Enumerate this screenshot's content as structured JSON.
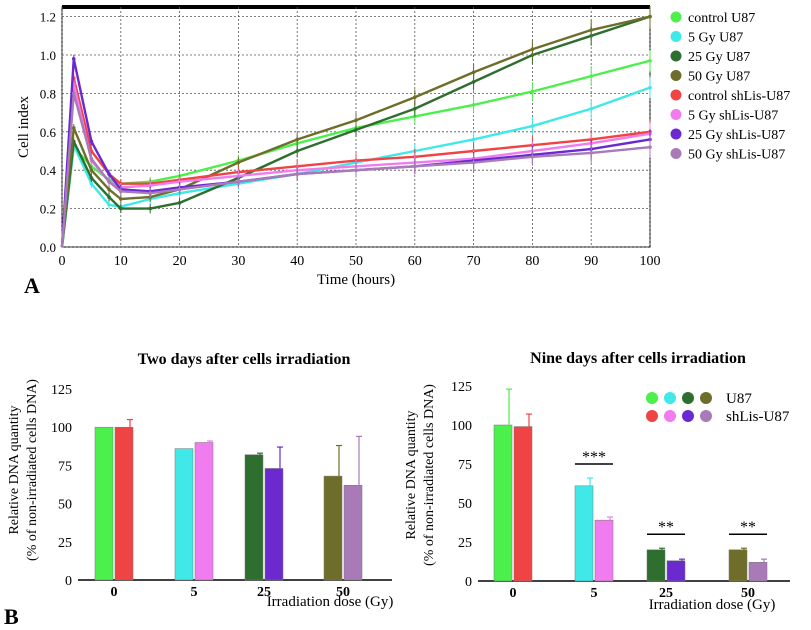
{
  "panel_labels": {
    "a": "A",
    "b": "B"
  },
  "colors": {
    "control_u87": "#4cf04c",
    "5gy_u87": "#40e8e8",
    "25gy_u87": "#2e6e2e",
    "50gy_u87": "#6e6e2a",
    "control_sh": "#f04444",
    "5gy_sh": "#f07cf0",
    "25gy_sh": "#6a2ad0",
    "50gy_sh": "#a87ab8"
  },
  "chart_data": [
    {
      "type": "line",
      "id": "growth",
      "xlabel": "Time (hours)",
      "ylabel": "Cell index",
      "xlim": [
        0,
        100
      ],
      "ylim": [
        0.0,
        1.25
      ],
      "xticks": [
        "0",
        "10",
        "20",
        "30",
        "40",
        "50",
        "60",
        "70",
        "80",
        "90",
        "100"
      ],
      "yticks": [
        "0.0",
        "0.2",
        "0.4",
        "0.6",
        "0.8",
        "1.0",
        "1.2"
      ],
      "grid": true,
      "legend_position": "right",
      "series": [
        {
          "name": "control U87",
          "color": "#4cf04c",
          "x": [
            0,
            2,
            5,
            8,
            10,
            15,
            20,
            30,
            40,
            50,
            60,
            70,
            80,
            90,
            100
          ],
          "y": [
            0.0,
            0.52,
            0.42,
            0.35,
            0.33,
            0.34,
            0.37,
            0.45,
            0.54,
            0.62,
            0.68,
            0.74,
            0.81,
            0.89,
            0.97
          ]
        },
        {
          "name": "5 Gy U87",
          "color": "#40e8e8",
          "x": [
            0,
            2,
            5,
            8,
            10,
            15,
            20,
            30,
            40,
            50,
            60,
            70,
            80,
            90,
            100
          ],
          "y": [
            0.0,
            0.53,
            0.33,
            0.22,
            0.21,
            0.25,
            0.28,
            0.33,
            0.38,
            0.44,
            0.5,
            0.56,
            0.63,
            0.72,
            0.83
          ]
        },
        {
          "name": "25 Gy U87",
          "color": "#2e6e2e",
          "x": [
            0,
            2,
            5,
            8,
            10,
            15,
            20,
            30,
            40,
            50,
            60,
            70,
            80,
            90,
            100
          ],
          "y": [
            0.0,
            0.55,
            0.36,
            0.26,
            0.2,
            0.2,
            0.23,
            0.36,
            0.5,
            0.61,
            0.72,
            0.86,
            1.0,
            1.1,
            1.2
          ]
        },
        {
          "name": "50 Gy U87",
          "color": "#6e6e2a",
          "x": [
            0,
            2,
            5,
            8,
            10,
            15,
            20,
            30,
            40,
            50,
            60,
            70,
            80,
            90,
            100
          ],
          "y": [
            0.0,
            0.62,
            0.4,
            0.3,
            0.25,
            0.26,
            0.3,
            0.44,
            0.56,
            0.66,
            0.78,
            0.91,
            1.03,
            1.13,
            1.2
          ]
        },
        {
          "name": "control shLis-U87",
          "color": "#f04444",
          "x": [
            0,
            2,
            5,
            8,
            10,
            15,
            20,
            30,
            40,
            50,
            60,
            70,
            80,
            90,
            100
          ],
          "y": [
            0.0,
            0.88,
            0.5,
            0.38,
            0.33,
            0.33,
            0.35,
            0.39,
            0.42,
            0.45,
            0.47,
            0.5,
            0.53,
            0.56,
            0.6
          ]
        },
        {
          "name": "5 Gy shLis-U87",
          "color": "#f07cf0",
          "x": [
            0,
            2,
            5,
            8,
            10,
            15,
            20,
            30,
            40,
            50,
            60,
            70,
            80,
            90,
            100
          ],
          "y": [
            0.0,
            0.85,
            0.45,
            0.34,
            0.31,
            0.32,
            0.34,
            0.37,
            0.4,
            0.42,
            0.44,
            0.46,
            0.5,
            0.54,
            0.59
          ]
        },
        {
          "name": "25 Gy shLis-U87",
          "color": "#6a2ad0",
          "x": [
            0,
            2,
            5,
            8,
            10,
            15,
            20,
            30,
            40,
            50,
            60,
            70,
            80,
            90,
            100
          ],
          "y": [
            0.0,
            0.98,
            0.55,
            0.38,
            0.3,
            0.29,
            0.31,
            0.34,
            0.38,
            0.4,
            0.42,
            0.45,
            0.48,
            0.51,
            0.56
          ]
        },
        {
          "name": "50 Gy shLis-U87",
          "color": "#a87ab8",
          "x": [
            0,
            2,
            5,
            8,
            10,
            15,
            20,
            30,
            40,
            50,
            60,
            70,
            80,
            90,
            100
          ],
          "y": [
            0.0,
            0.8,
            0.46,
            0.34,
            0.29,
            0.28,
            0.3,
            0.34,
            0.38,
            0.4,
            0.42,
            0.44,
            0.47,
            0.49,
            0.52
          ]
        }
      ]
    },
    {
      "type": "bar",
      "id": "day2",
      "title": "Two days after cells irradiation",
      "xlabel": "Irradiation dose (Gy)",
      "ylabel": "Relative DNA quantity",
      "ylabel2": "(% of non-irradiated cells DNA)",
      "ylim": [
        0,
        125
      ],
      "yticks": [
        "0",
        "25",
        "50",
        "75",
        "100",
        "125"
      ],
      "categories": [
        "0",
        "5",
        "25",
        "50"
      ],
      "series": [
        {
          "name": "U87",
          "colors": [
            "#4cf04c",
            "#40e8e8",
            "#2e6e2e",
            "#6e6e2a"
          ],
          "values": [
            100,
            86,
            82,
            68
          ],
          "errors": [
            0,
            0,
            1,
            20
          ]
        },
        {
          "name": "shLis-U87",
          "colors": [
            "#f04444",
            "#f07cf0",
            "#6a2ad0",
            "#a87ab8"
          ],
          "values": [
            100,
            90,
            73,
            62
          ],
          "errors": [
            5,
            1,
            14,
            32
          ]
        }
      ]
    },
    {
      "type": "bar",
      "id": "day9",
      "title": "Nine days after cells irradiation",
      "xlabel": "Irradiation dose (Gy)",
      "ylabel": "Relative DNA quantity",
      "ylabel2": "(% of non-irradiated cells DNA)",
      "ylim": [
        0,
        125
      ],
      "yticks": [
        "0",
        "25",
        "50",
        "75",
        "100",
        "125"
      ],
      "categories": [
        "0",
        "5",
        "25",
        "50"
      ],
      "series": [
        {
          "name": "U87",
          "colors": [
            "#4cf04c",
            "#40e8e8",
            "#2e6e2e",
            "#6e6e2a"
          ],
          "values": [
            100,
            61,
            20,
            20
          ],
          "errors": [
            23,
            5,
            1,
            1
          ]
        },
        {
          "name": "shLis-U87",
          "colors": [
            "#f04444",
            "#f07cf0",
            "#6a2ad0",
            "#a87ab8"
          ],
          "values": [
            99,
            39,
            13,
            12
          ],
          "errors": [
            8,
            2,
            1,
            2
          ]
        }
      ],
      "significance": [
        "",
        "***",
        "**",
        "**"
      ],
      "legend": [
        {
          "label": "U87",
          "colors": [
            "#4cf04c",
            "#40e8e8",
            "#2e6e2e",
            "#6e6e2a"
          ]
        },
        {
          "label": "shLis-U87",
          "colors": [
            "#f04444",
            "#f07cf0",
            "#6a2ad0",
            "#a87ab8"
          ]
        }
      ]
    }
  ]
}
